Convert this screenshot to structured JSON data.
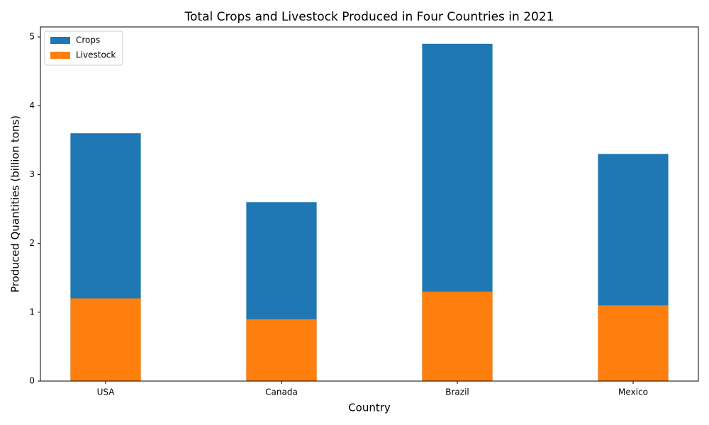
{
  "chart_data": {
    "type": "bar",
    "title": "Total Crops and Livestock Produced in Four Countries in 2021",
    "x_label": "Country",
    "y_label": "Produced Quantities (billion tons)",
    "categories": [
      "USA",
      "Canada",
      "Brazil",
      "Mexico"
    ],
    "series": [
      {
        "name": "Crops",
        "color": "#1f77b4",
        "values": [
          3.6,
          2.6,
          4.9,
          3.3
        ]
      },
      {
        "name": "Livestock",
        "color": "#ff7f0e",
        "values": [
          1.2,
          0.9,
          1.3,
          1.1
        ]
      }
    ],
    "ylim": [
      0,
      5.145
    ],
    "yticks": [
      0,
      1,
      2,
      3,
      4,
      5
    ],
    "legend": "upper left"
  }
}
